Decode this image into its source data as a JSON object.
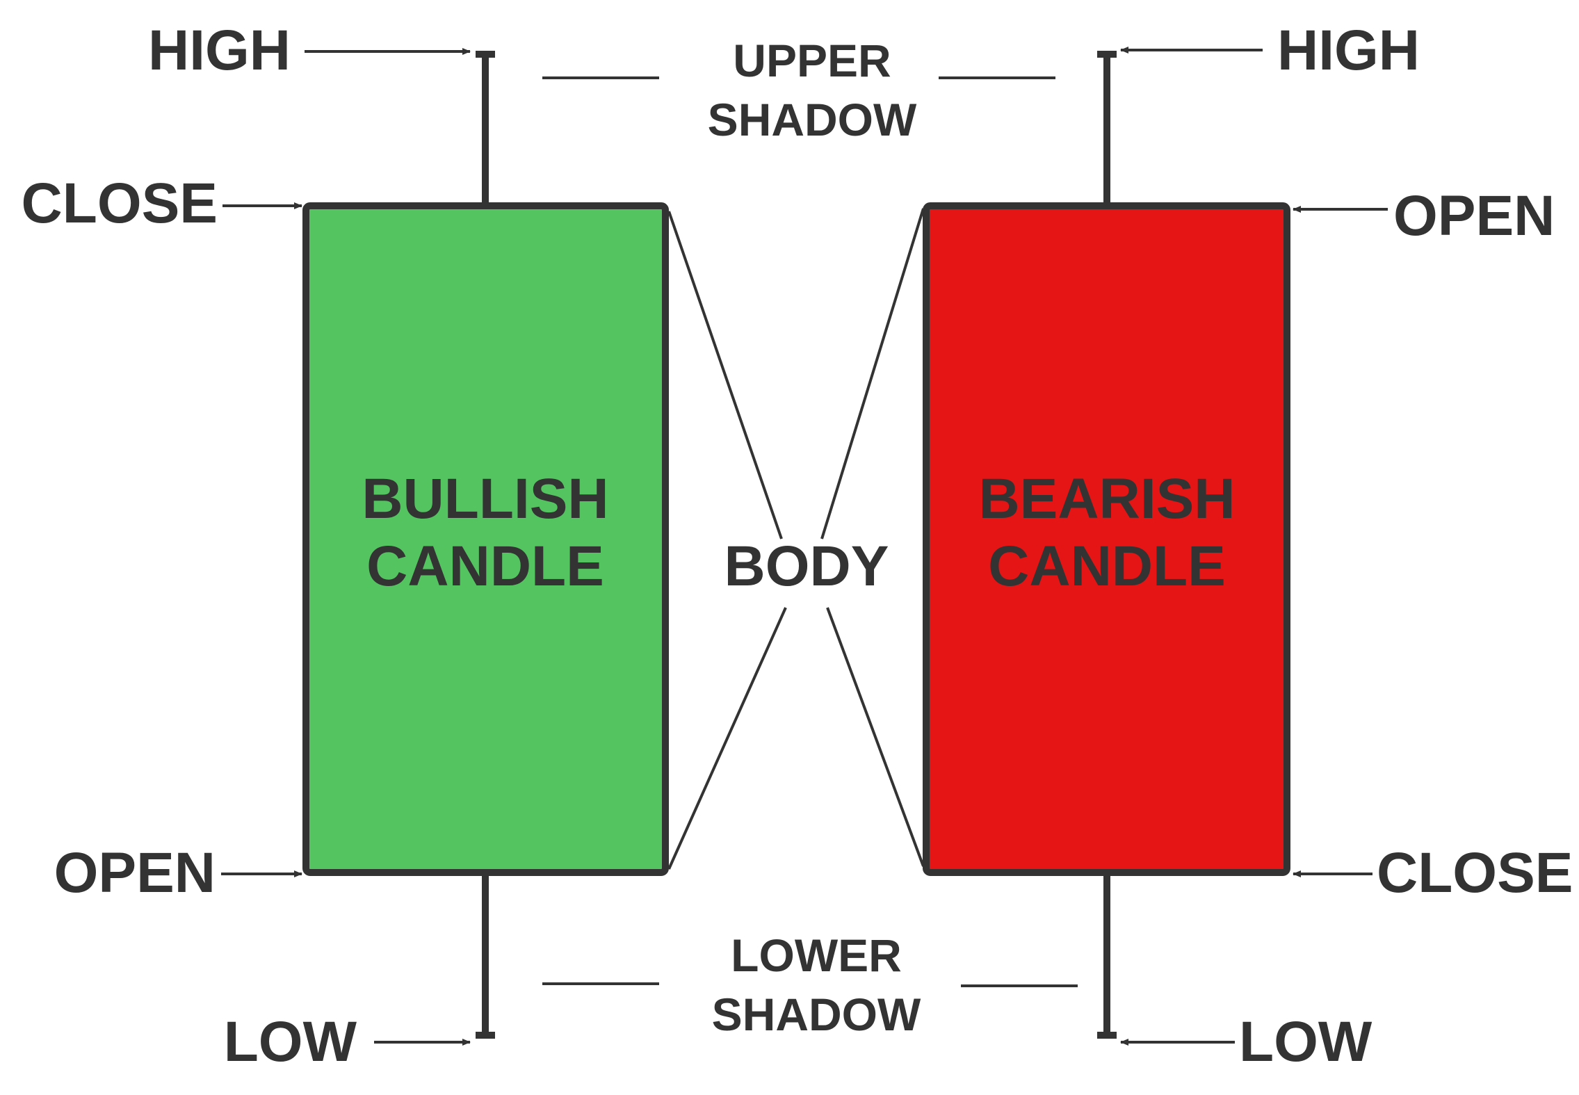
{
  "colors": {
    "bullish": "#54C461",
    "bearish": "#E61515",
    "stroke": "#333333",
    "text": "#333333"
  },
  "bullish": {
    "title_line1": "BULLISH",
    "title_line2": "CANDLE",
    "labels": {
      "high": "HIGH",
      "close": "CLOSE",
      "open": "OPEN",
      "low": "LOW"
    }
  },
  "bearish": {
    "title_line1": "BEARISH",
    "title_line2": "CANDLE",
    "labels": {
      "high": "HIGH",
      "open": "OPEN",
      "close": "CLOSE",
      "low": "LOW"
    }
  },
  "center": {
    "upper_shadow_line1": "UPPER",
    "upper_shadow_line2": "SHADOW",
    "body": "BODY",
    "lower_shadow_line1": "LOWER",
    "lower_shadow_line2": "SHADOW"
  }
}
